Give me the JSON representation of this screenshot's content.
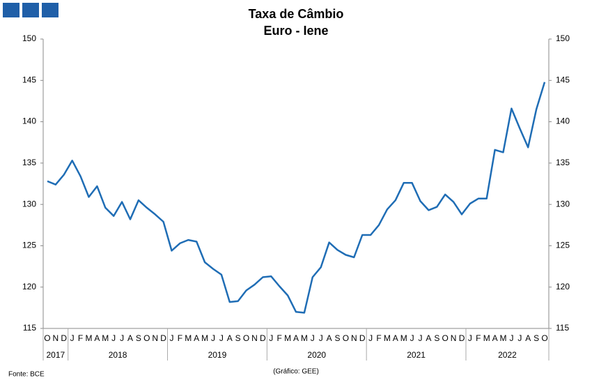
{
  "chart_data": {
    "type": "line",
    "title": "Taxa de Câmbio",
    "subtitle": "Euro - Iene",
    "source": "Fonte: BCE",
    "credit": "(Gráfico: GEE)",
    "categories": [
      "O",
      "N",
      "D",
      "J",
      "F",
      "M",
      "A",
      "M",
      "J",
      "J",
      "A",
      "S",
      "O",
      "N",
      "D",
      "J",
      "F",
      "M",
      "A",
      "M",
      "J",
      "J",
      "A",
      "S",
      "O",
      "N",
      "D",
      "J",
      "F",
      "M",
      "A",
      "M",
      "J",
      "J",
      "A",
      "S",
      "O",
      "N",
      "D",
      "J",
      "F",
      "M",
      "A",
      "M",
      "J",
      "J",
      "A",
      "S",
      "O",
      "N",
      "D",
      "J",
      "F",
      "M",
      "A",
      "M",
      "J",
      "J",
      "A",
      "S",
      "O"
    ],
    "years": [
      "2017",
      "2018",
      "2019",
      "2020",
      "2021",
      "2022"
    ],
    "values": [
      132.8,
      132.4,
      133.6,
      135.3,
      133.4,
      130.9,
      132.2,
      129.6,
      128.6,
      130.3,
      128.2,
      130.5,
      129.6,
      128.8,
      127.9,
      124.4,
      125.3,
      125.7,
      125.5,
      123.0,
      122.2,
      121.5,
      118.2,
      118.3,
      119.6,
      120.3,
      121.2,
      121.3,
      120.1,
      119.0,
      117.0,
      116.9,
      121.2,
      122.4,
      125.4,
      124.5,
      123.9,
      123.6,
      126.3,
      126.3,
      127.5,
      129.4,
      130.5,
      132.6,
      132.6,
      130.4,
      129.3,
      129.7,
      131.2,
      130.3,
      128.8,
      130.1,
      130.7,
      130.7,
      136.6,
      136.3,
      141.6,
      139.2,
      136.9,
      141.5,
      144.8
    ],
    "color": "#1f6db5",
    "ylim": [
      115,
      150
    ],
    "yticks": [
      115,
      120,
      125,
      130,
      135,
      140,
      145,
      150
    ],
    "y2lim": [
      115,
      150
    ],
    "y2ticks": [
      115,
      120,
      125,
      130,
      135,
      140,
      145,
      150
    ],
    "grid": false
  }
}
